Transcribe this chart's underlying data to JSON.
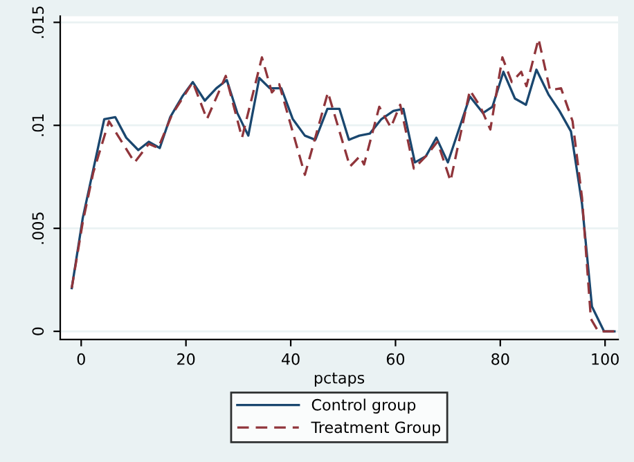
{
  "chart_data": {
    "type": "line",
    "xlabel": "pctaps",
    "xlim": [
      -4,
      102.5
    ],
    "ylim": [
      -0.0004,
      0.0153
    ],
    "xticks": [
      0,
      20,
      40,
      60,
      80,
      100
    ],
    "yticks": [
      0,
      {
        "value": 0.005,
        "label": ".005"
      },
      {
        "value": 0.01,
        "label": ".01"
      },
      {
        "value": 0.015,
        "label": ".015"
      }
    ],
    "grid": "y",
    "legend": "bottom",
    "series": [
      {
        "name": "Control group",
        "color": "#1a476f",
        "line_style": "solid",
        "x": [
          -1.8,
          0.3,
          4.4,
          6.5,
          8.6,
          10.9,
          12.9,
          15,
          17,
          19.3,
          21.3,
          23.6,
          25.8,
          27.8,
          29.8,
          31.9,
          34,
          36,
          38.2,
          40.4,
          42.7,
          44.7,
          47,
          49.3,
          51.1,
          53.1,
          55.1,
          57.3,
          59.6,
          61.5,
          63.7,
          65.8,
          67.8,
          70,
          74.2,
          76.7,
          78.5,
          80.6,
          82.8,
          84.9,
          86.9,
          89.2,
          91.3,
          93.5,
          95.6,
          97.5,
          99.8,
          101.8
        ],
        "values": [
          0.0021,
          0.0055,
          0.0103,
          0.0104,
          0.0094,
          0.0088,
          0.0092,
          0.0089,
          0.0104,
          0.0114,
          0.0121,
          0.0112,
          0.0118,
          0.0122,
          0.0106,
          0.0095,
          0.0123,
          0.0118,
          0.0118,
          0.0103,
          0.0095,
          0.0093,
          0.0108,
          0.0108,
          0.0093,
          0.0095,
          0.0096,
          0.0103,
          0.0107,
          0.0108,
          0.0082,
          0.0085,
          0.0094,
          0.0082,
          0.0114,
          0.0106,
          0.0109,
          0.0126,
          0.0113,
          0.011,
          0.0127,
          0.0115,
          0.0107,
          0.0097,
          0.0062,
          0.0012,
          0,
          0
        ]
      },
      {
        "name": "Treatment Group",
        "color": "#90353b",
        "line_style": "dashed",
        "x": [
          -1.8,
          0.3,
          2.3,
          5.3,
          10.2,
          12.9,
          14.7,
          17.3,
          21.3,
          24,
          27.6,
          30.7,
          34.5,
          36.4,
          37.8,
          42.7,
          47.1,
          51.3,
          53.2,
          54,
          56.9,
          59.1,
          60.9,
          63.5,
          65.8,
          68,
          70.5,
          74.2,
          76.2,
          78.1,
          80.4,
          82.2,
          84,
          85,
          87.3,
          89.5,
          91.6,
          93.8,
          95.6,
          97.3,
          98.7,
          101.8
        ],
        "values": [
          0.0021,
          0.0053,
          0.0077,
          0.0102,
          0.0082,
          0.0091,
          0.0089,
          0.0105,
          0.0121,
          0.0103,
          0.0124,
          0.0094,
          0.0133,
          0.0116,
          0.012,
          0.0076,
          0.0116,
          0.008,
          0.0085,
          0.0081,
          0.0109,
          0.0099,
          0.011,
          0.0079,
          0.0085,
          0.0092,
          0.0073,
          0.0117,
          0.0109,
          0.0098,
          0.0133,
          0.0121,
          0.0126,
          0.0119,
          0.0142,
          0.0117,
          0.0118,
          0.0102,
          0.0065,
          0.0006,
          0,
          0
        ]
      }
    ]
  }
}
